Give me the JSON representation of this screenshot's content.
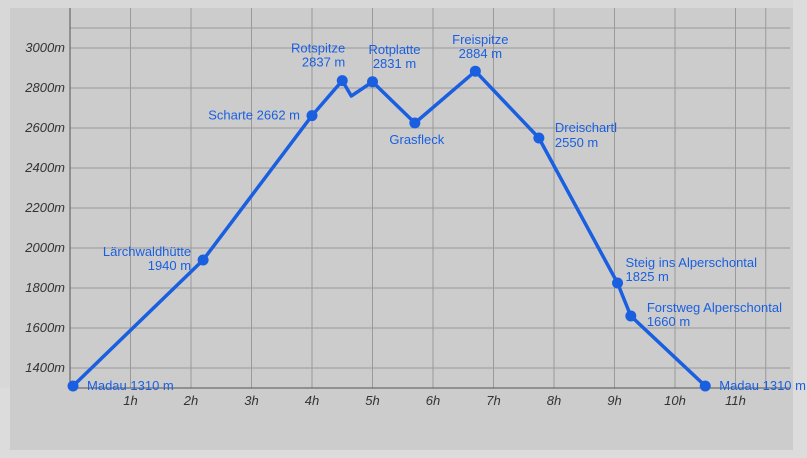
{
  "chart_data": {
    "type": "line",
    "title": "",
    "xlabel": "",
    "ylabel": "",
    "xlim": [
      0,
      12
    ],
    "ylim": [
      1300,
      3100
    ],
    "grid": true,
    "x_tick_labels": [
      "1h",
      "2h",
      "3h",
      "4h",
      "5h",
      "6h",
      "7h",
      "8h",
      "9h",
      "10h",
      "11h"
    ],
    "y_tick_labels": [
      "1400m",
      "1600m",
      "1800m",
      "2000m",
      "2200m",
      "2400m",
      "2600m",
      "2800m",
      "3000m"
    ],
    "colors": {
      "line": "#1a5fe0",
      "plot_bg": "#cccccc",
      "grid": "#9a9a9a",
      "frame": "#e6e6e6"
    },
    "series": [
      {
        "x": [
          0.05,
          2.2,
          4.0,
          4.5,
          4.65,
          5.0,
          5.7,
          6.7,
          7.75,
          9.05,
          9.27,
          10.5
        ],
        "y": [
          1310,
          1940,
          2662,
          2837,
          2760,
          2831,
          2625,
          2884,
          2550,
          1825,
          1660,
          1310
        ]
      }
    ],
    "waypoints": [
      {
        "x": 0.05,
        "y": 1310,
        "lines": [
          "Madau 1310 m"
        ]
      },
      {
        "x": 2.2,
        "y": 1940,
        "lines": [
          "Lärchwaldhütte",
          "1940 m"
        ]
      },
      {
        "x": 4.0,
        "y": 2662,
        "lines": [
          "Scharte 2662 m"
        ]
      },
      {
        "x": 4.5,
        "y": 2837,
        "lines": [
          "Rotspitze",
          "2837 m"
        ]
      },
      {
        "x": 5.0,
        "y": 2831,
        "lines": [
          "Rotplatte",
          "2831 m"
        ]
      },
      {
        "x": 5.7,
        "y": 2625,
        "lines": [
          "Grasfleck"
        ]
      },
      {
        "x": 6.7,
        "y": 2884,
        "lines": [
          "Freispitze",
          "2884 m"
        ]
      },
      {
        "x": 7.75,
        "y": 2550,
        "lines": [
          "Dreischartl",
          "2550 m"
        ]
      },
      {
        "x": 9.05,
        "y": 1825,
        "lines": [
          "Steig ins Alperschontal",
          "1825 m"
        ]
      },
      {
        "x": 9.27,
        "y": 1660,
        "lines": [
          "Forstweg Alperschontal",
          "1660 m"
        ]
      },
      {
        "x": 10.5,
        "y": 1310,
        "lines": [
          "Madau 1310 m"
        ]
      }
    ]
  }
}
